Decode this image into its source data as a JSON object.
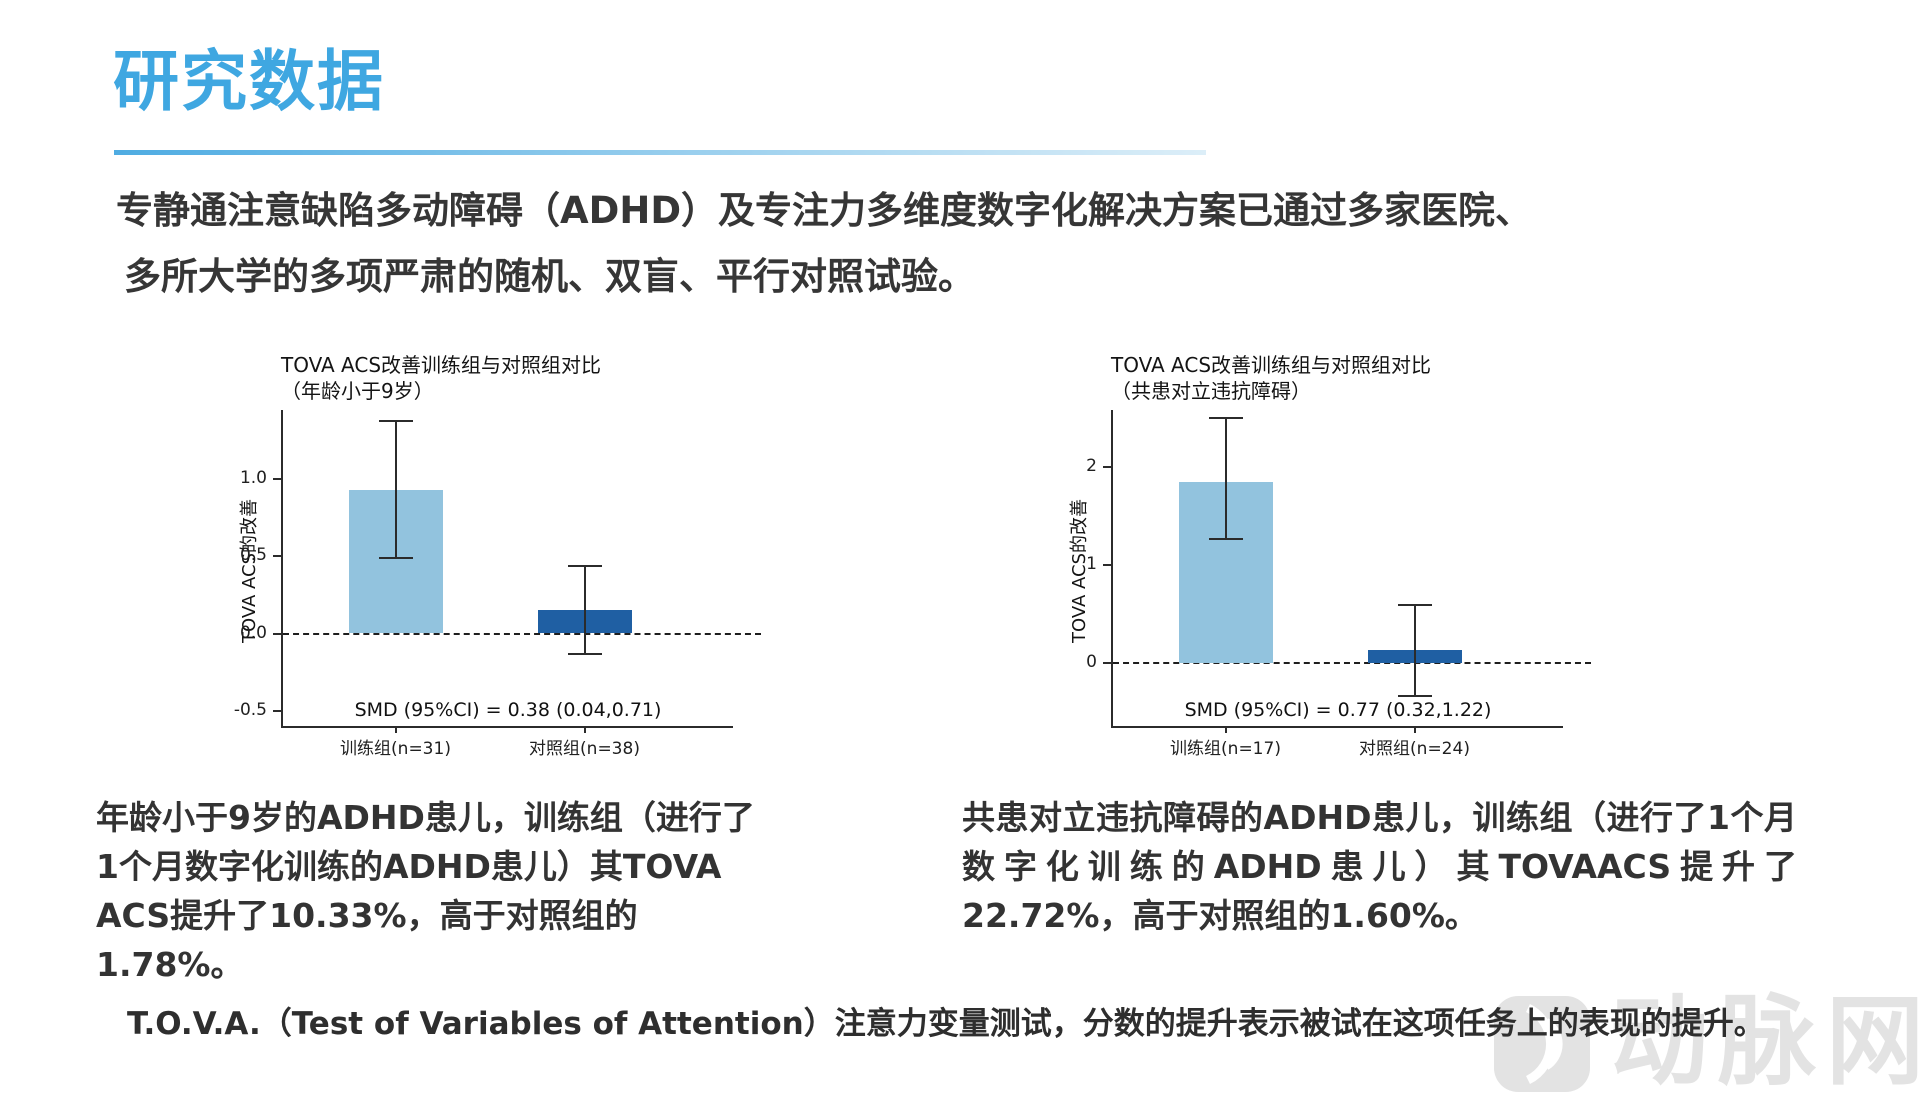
{
  "page": {
    "title": "研究数据",
    "intro": {
      "line1": "专静通注意缺陷多动障碍（ADHD）及专注力多维度数字化解决方案已通过多家医院、",
      "line2": "多所大学的多项严肃的随机、双盲、平行对照试验。"
    },
    "notes": {
      "left": "年龄小于9岁的ADHD患儿，训练组（进行了1个月数字化训练的ADHD患儿）其TOVA  ACS提升了10.33%，高于对照组的1.78%。",
      "right": "共患对立违抗障碍的ADHD患儿，训练组（进行了1个月数字化训练的ADHD患儿）其TOVAACS提升了22.72%，高于对照组的1.60%。"
    },
    "footer": "T.O.V.A.（Test of Variables of Attention）注意力变量测试，分数的提升表示被试在这项任务上的表现的提升。",
    "watermark": "动脉网"
  },
  "colors": {
    "title_blue": "#3FA7E1",
    "underline_from": "#4FACE2",
    "underline_to": "#DCEEF8",
    "bar_light": "#92C3DE",
    "bar_dark": "#1F5FA3",
    "axis": "#2B2B2B",
    "watermark": "#E3E3E3"
  },
  "chart_data": [
    {
      "type": "bar",
      "title": "TOVA ACS改善训练组与对照组对比",
      "subtitle": "（年龄小于9岁）",
      "ylabel": "TOVA ACS的改善",
      "categories": [
        "训练组(n=31)",
        "对照组(n=38)"
      ],
      "values": [
        0.93,
        0.15
      ],
      "ci_low": [
        0.49,
        -0.13
      ],
      "ci_high": [
        1.38,
        0.44
      ],
      "yticks": [
        "1.0",
        "0.5",
        "0.0",
        "-0.5"
      ],
      "ytick_values": [
        1.0,
        0.5,
        0.0,
        -0.5
      ],
      "ylim": [
        -0.6,
        1.45
      ],
      "zero_line": true,
      "grid": false,
      "legend": null,
      "annotation": "SMD (95%CI) = 0.38 (0.04,0.71)",
      "bar_color_keys": [
        "bar_light",
        "bar_dark"
      ]
    },
    {
      "type": "bar",
      "title": "TOVA ACS改善训练组与对照组对比",
      "subtitle": "（共患对立违抗障碍）",
      "ylabel": "TOVA ACS的改善",
      "categories": [
        "训练组(n=17)",
        "对照组(n=24)"
      ],
      "values": [
        1.85,
        0.13
      ],
      "ci_low": [
        1.27,
        -0.33
      ],
      "ci_high": [
        2.5,
        0.59
      ],
      "yticks": [
        "2",
        "1",
        "0"
      ],
      "ytick_values": [
        2,
        1,
        0
      ],
      "ylim": [
        -0.64,
        2.58
      ],
      "zero_line": true,
      "grid": false,
      "legend": null,
      "annotation": "SMD (95%CI) = 0.77 (0.32,1.22)",
      "bar_color_keys": [
        "bar_light",
        "bar_dark"
      ]
    }
  ]
}
